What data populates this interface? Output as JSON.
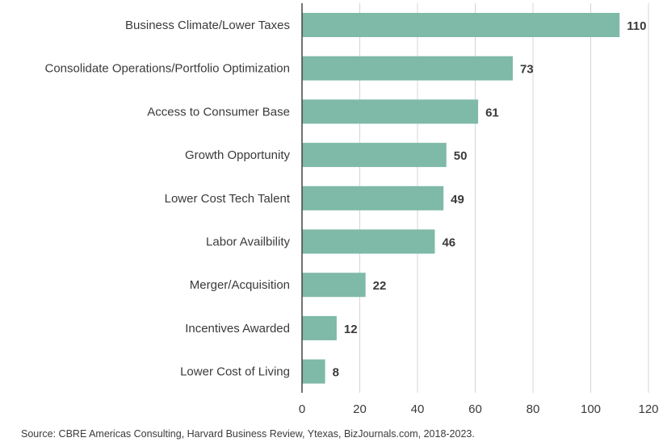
{
  "chart_data": {
    "type": "bar",
    "orientation": "horizontal",
    "categories": [
      "Business Climate/Lower Taxes",
      "Consolidate Operations/Portfolio Optimization",
      "Access to Consumer Base",
      "Growth Opportunity",
      "Lower Cost Tech Talent",
      "Labor Availbility",
      "Merger/Acquisition",
      "Incentives Awarded",
      "Lower Cost of Living"
    ],
    "values": [
      110,
      73,
      61,
      50,
      49,
      46,
      22,
      12,
      8
    ],
    "xlim": [
      0,
      120
    ],
    "xticks": [
      0,
      20,
      40,
      60,
      80,
      100,
      120
    ],
    "grid": "vertical",
    "bar_color": "#7fb9a8",
    "title": "",
    "xlabel": "",
    "ylabel": ""
  },
  "source": "Source: CBRE Americas Consulting, Harvard Business Review, Ytexas, BizJournals.com, 2018-2023."
}
